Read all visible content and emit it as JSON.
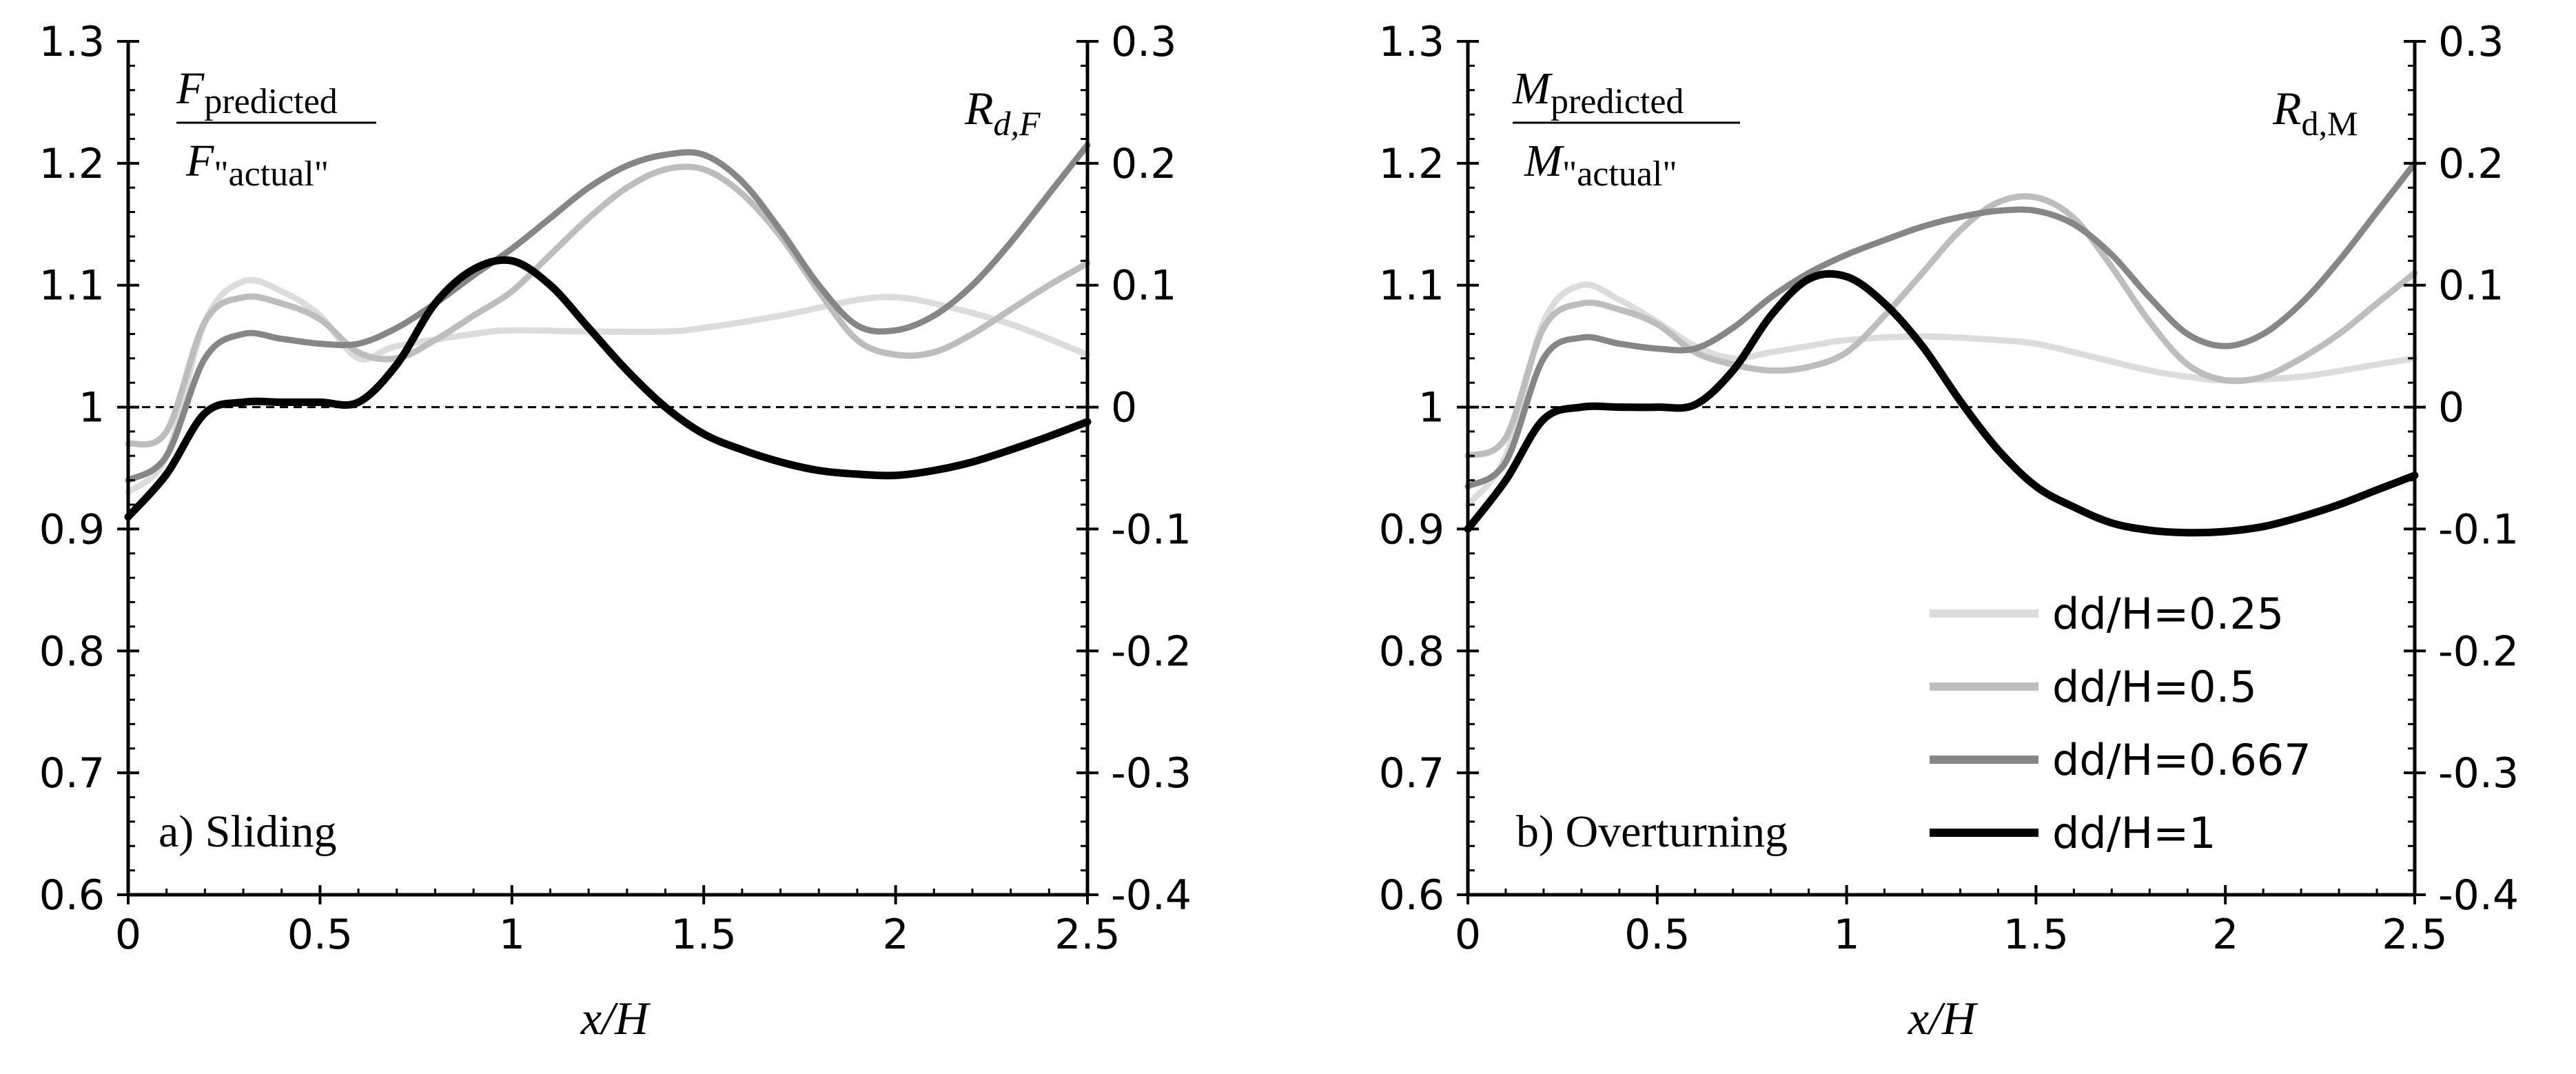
{
  "colors": {
    "dd_0_25": "#dcdcdc",
    "dd_0_5": "#bdbdbd",
    "dd_0_667": "#868686",
    "dd_1": "#000000",
    "axis": "#000000",
    "zero_line": "#000000"
  },
  "legend": [
    "dd/H=0.25",
    "dd/H=0.5",
    "dd/H=0.667",
    "dd/H=1"
  ],
  "chart_data": [
    {
      "type": "line",
      "panel_label": "a) Sliding",
      "xlabel": "x/H",
      "ylabel_left": {
        "main": "F",
        "sub_num": "predicted",
        "sub_den": "\"actual\""
      },
      "ylabel_right": {
        "main": "R",
        "sub": "d,F"
      },
      "xlim": [
        0,
        2.5
      ],
      "xticks": [
        "0",
        "0.5",
        "1",
        "1.5",
        "2",
        "2.5"
      ],
      "ylim_left": [
        0.6,
        1.3
      ],
      "yticks_left": [
        "0.6",
        "0.7",
        "0.8",
        "0.9",
        "1",
        "1.1",
        "1.2",
        "1.3"
      ],
      "ylim_right": [
        -0.4,
        0.3
      ],
      "yticks_right": [
        "-0.4",
        "-0.3",
        "-0.2",
        "-0.1",
        "0",
        "0.1",
        "0.2",
        "0.3"
      ],
      "reference_line": 1,
      "series": [
        {
          "name": "dd/H=0.25",
          "x": [
            0,
            0.1,
            0.2,
            0.3,
            0.4,
            0.5,
            0.6,
            0.7,
            0.9,
            1.0,
            1.2,
            1.4,
            1.5,
            1.7,
            1.9,
            2.0,
            2.1,
            2.3,
            2.5
          ],
          "y": [
            0.93,
            0.96,
            1.07,
            1.103,
            1.095,
            1.075,
            1.04,
            1.05,
            1.06,
            1.063,
            1.062,
            1.062,
            1.065,
            1.075,
            1.088,
            1.09,
            1.085,
            1.068,
            1.043
          ]
        },
        {
          "name": "dd/H=0.5",
          "x": [
            0,
            0.1,
            0.2,
            0.3,
            0.4,
            0.5,
            0.6,
            0.7,
            0.8,
            0.9,
            1.0,
            1.1,
            1.2,
            1.3,
            1.4,
            1.5,
            1.6,
            1.7,
            1.8,
            1.9,
            2.0,
            2.1,
            2.2,
            2.3,
            2.4,
            2.5
          ],
          "y": [
            0.97,
            0.98,
            1.07,
            1.09,
            1.085,
            1.072,
            1.045,
            1.04,
            1.055,
            1.075,
            1.095,
            1.125,
            1.155,
            1.18,
            1.195,
            1.195,
            1.175,
            1.14,
            1.095,
            1.055,
            1.043,
            1.045,
            1.06,
            1.08,
            1.1,
            1.118
          ]
        },
        {
          "name": "dd/H=0.667",
          "x": [
            0,
            0.1,
            0.2,
            0.3,
            0.4,
            0.5,
            0.6,
            0.7,
            0.8,
            0.9,
            1.0,
            1.1,
            1.2,
            1.3,
            1.4,
            1.5,
            1.6,
            1.7,
            1.8,
            1.9,
            2.0,
            2.1,
            2.2,
            2.3,
            2.4,
            2.5
          ],
          "y": [
            0.94,
            0.96,
            1.04,
            1.06,
            1.056,
            1.052,
            1.052,
            1.065,
            1.085,
            1.108,
            1.13,
            1.155,
            1.18,
            1.198,
            1.207,
            1.207,
            1.185,
            1.145,
            1.1,
            1.067,
            1.063,
            1.075,
            1.1,
            1.135,
            1.175,
            1.215
          ]
        },
        {
          "name": "dd/H=1",
          "x": [
            0,
            0.1,
            0.2,
            0.3,
            0.4,
            0.5,
            0.6,
            0.7,
            0.8,
            0.9,
            1.0,
            1.1,
            1.2,
            1.3,
            1.4,
            1.5,
            1.6,
            1.7,
            1.8,
            1.9,
            2.0,
            2.1,
            2.2,
            2.3,
            2.4,
            2.5
          ],
          "y": [
            0.91,
            0.945,
            0.995,
            1.004,
            1.004,
            1.004,
            1.004,
            1.035,
            1.085,
            1.113,
            1.12,
            1.1,
            1.065,
            1.03,
            1.0,
            0.978,
            0.965,
            0.955,
            0.948,
            0.945,
            0.944,
            0.948,
            0.955,
            0.965,
            0.976,
            0.988
          ]
        }
      ]
    },
    {
      "type": "line",
      "panel_label": "b) Overturning",
      "xlabel": "x/H",
      "ylabel_left": {
        "main": "M",
        "sub_num": "predicted",
        "sub_den": "\"actual\""
      },
      "ylabel_right": {
        "main": "R",
        "sub": "d,M"
      },
      "xlim": [
        0,
        2.5
      ],
      "xticks": [
        "0",
        "0.5",
        "1",
        "1.5",
        "2",
        "2.5"
      ],
      "ylim_left": [
        0.6,
        1.3
      ],
      "yticks_left": [
        "0.6",
        "0.7",
        "0.8",
        "0.9",
        "1",
        "1.1",
        "1.2",
        "1.3"
      ],
      "ylim_right": [
        -0.4,
        0.3
      ],
      "yticks_right": [
        "-0.4",
        "-0.3",
        "-0.2",
        "-0.1",
        "0",
        "0.1",
        "0.2",
        "0.3"
      ],
      "reference_line": 1,
      "series": [
        {
          "name": "dd/H=0.25",
          "x": [
            0,
            0.1,
            0.2,
            0.3,
            0.4,
            0.5,
            0.6,
            0.7,
            0.8,
            0.9,
            1.0,
            1.2,
            1.4,
            1.5,
            1.6,
            1.8,
            1.9,
            2.0,
            2.2,
            2.4,
            2.5
          ],
          "y": [
            0.92,
            0.96,
            1.07,
            1.1,
            1.088,
            1.07,
            1.05,
            1.04,
            1.045,
            1.05,
            1.055,
            1.058,
            1.055,
            1.052,
            1.045,
            1.03,
            1.025,
            1.022,
            1.025,
            1.035,
            1.04
          ]
        },
        {
          "name": "dd/H=0.5",
          "x": [
            0,
            0.1,
            0.2,
            0.3,
            0.4,
            0.5,
            0.6,
            0.7,
            0.8,
            0.9,
            1.0,
            1.1,
            1.2,
            1.3,
            1.4,
            1.5,
            1.6,
            1.7,
            1.8,
            1.9,
            2.0,
            2.1,
            2.2,
            2.3,
            2.4,
            2.5
          ],
          "y": [
            0.96,
            0.975,
            1.065,
            1.085,
            1.08,
            1.068,
            1.045,
            1.035,
            1.03,
            1.033,
            1.045,
            1.075,
            1.11,
            1.145,
            1.168,
            1.172,
            1.155,
            1.115,
            1.07,
            1.035,
            1.022,
            1.025,
            1.04,
            1.06,
            1.085,
            1.11
          ]
        },
        {
          "name": "dd/H=0.667",
          "x": [
            0,
            0.1,
            0.2,
            0.3,
            0.4,
            0.5,
            0.6,
            0.7,
            0.8,
            0.9,
            1.0,
            1.1,
            1.2,
            1.3,
            1.4,
            1.5,
            1.6,
            1.7,
            1.8,
            1.9,
            2.0,
            2.1,
            2.2,
            2.3,
            2.4,
            2.5
          ],
          "y": [
            0.935,
            0.955,
            1.04,
            1.057,
            1.052,
            1.048,
            1.048,
            1.065,
            1.09,
            1.11,
            1.125,
            1.137,
            1.148,
            1.156,
            1.161,
            1.161,
            1.15,
            1.125,
            1.09,
            1.06,
            1.05,
            1.06,
            1.085,
            1.12,
            1.16,
            1.2
          ]
        },
        {
          "name": "dd/H=1",
          "x": [
            0,
            0.1,
            0.2,
            0.3,
            0.4,
            0.5,
            0.6,
            0.7,
            0.8,
            0.9,
            1.0,
            1.1,
            1.2,
            1.3,
            1.4,
            1.5,
            1.6,
            1.7,
            1.8,
            1.9,
            2.0,
            2.1,
            2.2,
            2.3,
            2.4,
            2.5
          ],
          "y": [
            0.9,
            0.94,
            0.99,
            1.0,
            1.0,
            1.0,
            1.002,
            1.03,
            1.075,
            1.105,
            1.107,
            1.085,
            1.05,
            1.005,
            0.965,
            0.935,
            0.918,
            0.905,
            0.899,
            0.897,
            0.898,
            0.902,
            0.91,
            0.92,
            0.932,
            0.944
          ]
        }
      ]
    }
  ]
}
